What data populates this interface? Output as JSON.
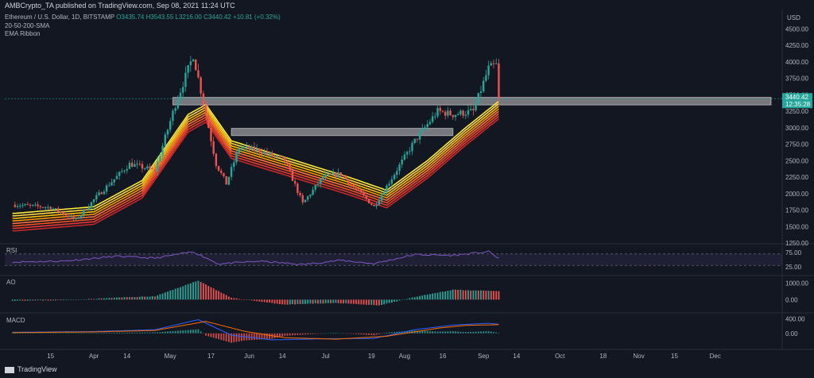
{
  "header": {
    "author_line": "AMBCrypto_TA published on TradingView.com, Sep 08, 2021 11:24 UTC"
  },
  "symbol": {
    "name": "Ethereum / U.S. Dollar, 1D, BITSTAMP",
    "o": "O3435.74",
    "h": "H3543.55",
    "l": "L3216.00",
    "c": "C3440.42",
    "change": "+10.81 (+0.32%)"
  },
  "indicators": [
    "20-50-200-SMA",
    "EMA Ribbon"
  ],
  "currency": "USD",
  "price_badge": {
    "value": "3440.42",
    "countdown": "12:35:28"
  },
  "panes": {
    "rsi": "RSI",
    "ao": "AO",
    "macd": "MACD"
  },
  "footer": {
    "brand": "TradingView"
  },
  "colors": {
    "background": "#131722",
    "up": "#26a69a",
    "down": "#ef5350",
    "rsi_line": "#7e57c2",
    "macd_line": "#2962ff",
    "signal_line": "#ff6d00",
    "zone": "#c8c8c8"
  },
  "chart_data": [
    {
      "type": "candlestick",
      "title": "Ethereum / U.S. Dollar, 1D, BITSTAMP",
      "ylim": [
        1250,
        4600
      ],
      "y_ticks": [
        "4500.00",
        "4250.00",
        "4000.00",
        "3750.00",
        "3500.00",
        "3250.00",
        "3000.00",
        "2750.00",
        "2500.00",
        "2250.00",
        "2000.00",
        "1750.00",
        "1500.00",
        "1250.00"
      ],
      "x_ticks": [
        "15",
        "Apr",
        "14",
        "May",
        "17",
        "Jun",
        "14",
        "Jul",
        "19",
        "Aug",
        "16",
        "Sep",
        "14",
        "Oct",
        "18",
        "Nov",
        "15",
        "Dec"
      ],
      "price_anchors": [
        [
          "2021-03-01",
          1830
        ],
        [
          "2021-03-15",
          1790
        ],
        [
          "2021-03-25",
          1600
        ],
        [
          "2021-04-02",
          1950
        ],
        [
          "2021-04-15",
          2450
        ],
        [
          "2021-04-25",
          2350
        ],
        [
          "2021-05-03",
          3350
        ],
        [
          "2021-05-10",
          4100
        ],
        [
          "2021-05-12",
          3750
        ],
        [
          "2021-05-19",
          2450
        ],
        [
          "2021-05-23",
          2150
        ],
        [
          "2021-05-28",
          2700
        ],
        [
          "2021-06-05",
          2650
        ],
        [
          "2021-06-15",
          2500
        ],
        [
          "2021-06-22",
          1850
        ],
        [
          "2021-06-30",
          2250
        ],
        [
          "2021-07-07",
          2300
        ],
        [
          "2021-07-20",
          1800
        ],
        [
          "2021-07-28",
          2300
        ],
        [
          "2021-08-05",
          2800
        ],
        [
          "2021-08-14",
          3250
        ],
        [
          "2021-08-20",
          3200
        ],
        [
          "2021-08-28",
          3250
        ],
        [
          "2021-09-03",
          3900
        ],
        [
          "2021-09-06",
          3950
        ],
        [
          "2021-09-07",
          3440
        ]
      ],
      "ema_ribbon_anchors": [
        [
          "2021-03-01",
          1700
        ],
        [
          "2021-04-01",
          1800
        ],
        [
          "2021-04-20",
          2200
        ],
        [
          "2021-05-08",
          3200
        ],
        [
          "2021-05-15",
          3350
        ],
        [
          "2021-05-25",
          2800
        ],
        [
          "2021-06-15",
          2550
        ],
        [
          "2021-07-10",
          2250
        ],
        [
          "2021-07-25",
          2050
        ],
        [
          "2021-08-10",
          2500
        ],
        [
          "2021-08-25",
          3000
        ],
        [
          "2021-09-07",
          3400
        ]
      ],
      "zones": [
        {
          "from": "2021-05-02",
          "to": "2021-09-10",
          "low": 3345,
          "high": 3460
        },
        {
          "from": "2021-05-25",
          "to": "2021-08-20",
          "low": 2880,
          "high": 2990
        }
      ],
      "last_price": 3440.42
    },
    {
      "type": "line",
      "name": "RSI",
      "y_ticks": [
        "75.00",
        "25.00"
      ],
      "ylim": [
        0,
        100
      ],
      "guides": [
        70,
        30
      ],
      "anchors": [
        [
          "2021-03-01",
          42
        ],
        [
          "2021-03-20",
          45
        ],
        [
          "2021-04-10",
          62
        ],
        [
          "2021-04-25",
          55
        ],
        [
          "2021-05-10",
          78
        ],
        [
          "2021-05-20",
          35
        ],
        [
          "2021-06-05",
          45
        ],
        [
          "2021-06-22",
          33
        ],
        [
          "2021-07-07",
          48
        ],
        [
          "2021-07-20",
          36
        ],
        [
          "2021-08-05",
          68
        ],
        [
          "2021-08-20",
          65
        ],
        [
          "2021-09-03",
          78
        ],
        [
          "2021-09-07",
          55
        ]
      ]
    },
    {
      "type": "histogram",
      "name": "AO",
      "y_ticks": [
        "1000.00",
        "0.00"
      ],
      "ylim": [
        -700,
        1300
      ],
      "anchors": [
        [
          "2021-03-01",
          -60
        ],
        [
          "2021-03-20",
          -40
        ],
        [
          "2021-04-10",
          120
        ],
        [
          "2021-04-25",
          200
        ],
        [
          "2021-05-12",
          1150
        ],
        [
          "2021-05-25",
          100
        ],
        [
          "2021-06-15",
          -300
        ],
        [
          "2021-07-05",
          -200
        ],
        [
          "2021-07-22",
          -350
        ],
        [
          "2021-08-05",
          150
        ],
        [
          "2021-08-20",
          600
        ],
        [
          "2021-09-07",
          500
        ]
      ]
    },
    {
      "type": "macd",
      "name": "MACD",
      "y_ticks": [
        "400.00",
        "0.00"
      ],
      "ylim": [
        -400,
        500
      ],
      "macd_anchors": [
        [
          "2021-03-01",
          30
        ],
        [
          "2021-04-01",
          50
        ],
        [
          "2021-04-25",
          100
        ],
        [
          "2021-05-12",
          380
        ],
        [
          "2021-05-25",
          -50
        ],
        [
          "2021-06-10",
          -180
        ],
        [
          "2021-06-30",
          -150
        ],
        [
          "2021-07-20",
          -140
        ],
        [
          "2021-08-05",
          100
        ],
        [
          "2021-08-20",
          230
        ],
        [
          "2021-09-03",
          280
        ],
        [
          "2021-09-07",
          250
        ]
      ],
      "signal_anchors": [
        [
          "2021-03-01",
          20
        ],
        [
          "2021-04-01",
          40
        ],
        [
          "2021-04-25",
          80
        ],
        [
          "2021-05-15",
          330
        ],
        [
          "2021-05-30",
          60
        ],
        [
          "2021-06-15",
          -120
        ],
        [
          "2021-07-05",
          -160
        ],
        [
          "2021-07-25",
          -80
        ],
        [
          "2021-08-15",
          150
        ],
        [
          "2021-08-25",
          220
        ],
        [
          "2021-09-07",
          240
        ]
      ]
    }
  ]
}
